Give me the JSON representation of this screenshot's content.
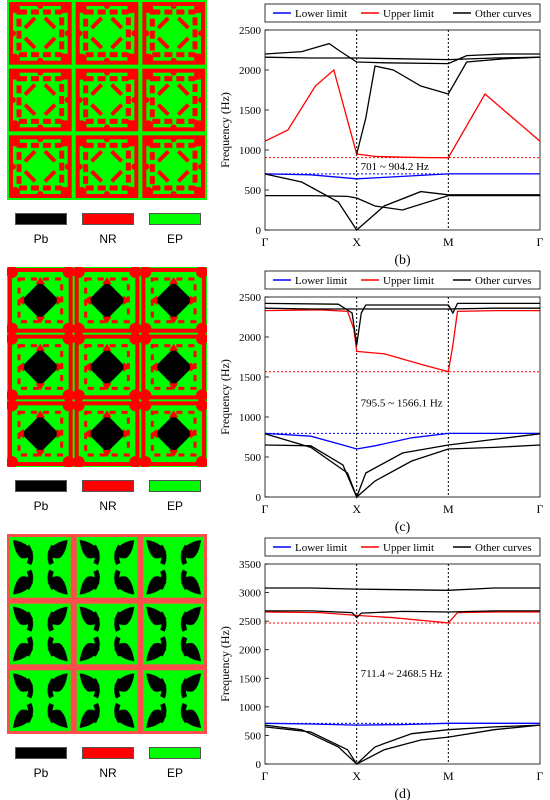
{
  "materials": [
    {
      "name": "Pb",
      "color": "#000000"
    },
    {
      "name": "NR",
      "color": "#ff0000"
    },
    {
      "name": "EP",
      "color": "#00ff00"
    }
  ],
  "chart_data": [
    {
      "type": "line",
      "panel_label": "(b)",
      "ylabel": "Frequency (Hz)",
      "xticks": [
        "Γ",
        "X",
        "M",
        "Γ"
      ],
      "yticks": [
        0,
        500,
        1000,
        1500,
        2000,
        2500
      ],
      "ylim": [
        0,
        2500
      ],
      "legend": [
        "Lower limit",
        "Upper limit",
        "Other curves"
      ],
      "band_gap_text": "701    ~ 904.2   Hz",
      "lower_limit": 701,
      "upper_limit": 904.2,
      "series": [
        {
          "name": "Lower limit",
          "color": "#0000ff",
          "x": [
            0,
            0.5,
            1.0,
            1.5,
            2.0,
            2.5,
            3.0
          ],
          "y": [
            701,
            690,
            640,
            670,
            701,
            701,
            701
          ]
        },
        {
          "name": "Upper limit",
          "color": "#ff0000",
          "x": [
            0,
            0.25,
            0.55,
            0.75,
            1.0,
            1.2,
            1.5,
            1.8,
            2.0,
            2.4,
            3.0
          ],
          "y": [
            1110,
            1250,
            1800,
            2000,
            950,
            920,
            910,
            905,
            904.2,
            1700,
            1110
          ]
        },
        {
          "name": "Other curves",
          "color": "#000000",
          "x": [
            0,
            0.4,
            0.7,
            0.8,
            1.0,
            1.3,
            2.0,
            2.2,
            2.6,
            3.0
          ],
          "y": [
            2200,
            2230,
            2330,
            2250,
            2100,
            2090,
            2080,
            2180,
            2200,
            2200
          ]
        },
        {
          "name": "Other curves",
          "color": "#000000",
          "x": [
            0,
            0.5,
            1.0,
            1.5,
            2.0,
            2.5,
            3.0
          ],
          "y": [
            2160,
            2150,
            2150,
            2140,
            2130,
            2150,
            2160
          ]
        },
        {
          "name": "Other curves",
          "color": "#000000",
          "x": [
            1.0,
            1.1,
            1.2,
            1.4,
            1.7,
            2.0,
            2.2,
            2.6,
            3.0
          ],
          "y": [
            950,
            1400,
            2050,
            2000,
            1800,
            1700,
            2100,
            2140,
            2160
          ]
        },
        {
          "name": "Other curves",
          "color": "#000000",
          "x": [
            0,
            0.5,
            0.9,
            1.0,
            1.2,
            1.5,
            2.0,
            2.5,
            3.0
          ],
          "y": [
            430,
            430,
            420,
            400,
            300,
            250,
            430,
            430,
            430
          ]
        },
        {
          "name": "Other curves",
          "color": "#000000",
          "x": [
            0,
            0.4,
            0.8,
            1.0,
            1.3,
            1.7,
            2.0,
            2.5,
            3.0
          ],
          "y": [
            700,
            600,
            350,
            0,
            300,
            480,
            440,
            440,
            440
          ]
        }
      ]
    },
    {
      "type": "line",
      "panel_label": "(c)",
      "ylabel": "Frequency (Hz)",
      "xticks": [
        "Γ",
        "X",
        "M",
        "Γ"
      ],
      "yticks": [
        0,
        500,
        1000,
        1500,
        2000,
        2500
      ],
      "ylim": [
        0,
        2500
      ],
      "legend": [
        "Lower limit",
        "Upper limit",
        "Other curves"
      ],
      "band_gap_text": "795.5 ~ 1566.1 Hz",
      "lower_limit": 795.5,
      "upper_limit": 1566.1,
      "series": [
        {
          "name": "Lower limit",
          "color": "#0000ff",
          "x": [
            0,
            0.5,
            0.85,
            1.0,
            1.2,
            1.6,
            2.0,
            2.5,
            3.0
          ],
          "y": [
            795.5,
            760,
            650,
            600,
            640,
            740,
            795.5,
            795.5,
            795.5
          ]
        },
        {
          "name": "Upper limit",
          "color": "#ff0000",
          "x": [
            0,
            0.6,
            0.9,
            0.97,
            1.0,
            1.3,
            1.7,
            2.0,
            2.05,
            2.1,
            2.5,
            3.0
          ],
          "y": [
            2330,
            2340,
            2320,
            2100,
            1820,
            1790,
            1660,
            1566.1,
            1900,
            2320,
            2330,
            2330
          ]
        },
        {
          "name": "Other curves",
          "color": "#000000",
          "x": [
            0,
            0.8,
            0.95,
            1.0,
            1.05,
            1.1,
            1.5,
            2.0,
            2.05,
            2.1,
            2.5,
            3.0
          ],
          "y": [
            2420,
            2410,
            2300,
            1900,
            2300,
            2400,
            2400,
            2400,
            2300,
            2420,
            2420,
            2420
          ]
        },
        {
          "name": "Other curves",
          "color": "#000000",
          "x": [
            0,
            0.5,
            1.0,
            1.5,
            2.0,
            2.5,
            3.0
          ],
          "y": [
            2360,
            2350,
            2350,
            2350,
            2350,
            2360,
            2360
          ]
        },
        {
          "name": "Other curves",
          "color": "#000000",
          "x": [
            0,
            0.5,
            0.85,
            1.0,
            1.2,
            1.6,
            2.0,
            2.5,
            3.0
          ],
          "y": [
            650,
            640,
            400,
            0,
            200,
            450,
            600,
            620,
            650
          ]
        },
        {
          "name": "Other curves",
          "color": "#000000",
          "x": [
            0,
            0.5,
            0.9,
            1.0,
            1.1,
            1.5,
            2.0,
            2.5,
            3.0
          ],
          "y": [
            790,
            620,
            300,
            0,
            300,
            550,
            650,
            720,
            790
          ]
        }
      ]
    },
    {
      "type": "line",
      "panel_label": "(d)",
      "ylabel": "Frequency (Hz)",
      "xticks": [
        "Γ",
        "X",
        "M",
        "Γ"
      ],
      "yticks": [
        0,
        500,
        1000,
        1500,
        2000,
        2500,
        3000,
        3500
      ],
      "ylim": [
        0,
        3500
      ],
      "legend": [
        "Lower limit",
        "Upper limit",
        "Other curves"
      ],
      "band_gap_text": "711.4 ~ 2468.5 Hz",
      "lower_limit": 711.4,
      "upper_limit": 2468.5,
      "series": [
        {
          "name": "Lower limit",
          "color": "#0000ff",
          "x": [
            0,
            0.5,
            1.0,
            1.5,
            2.0,
            2.5,
            3.0
          ],
          "y": [
            711.4,
            700,
            680,
            690,
            711.4,
            711.4,
            711.4
          ]
        },
        {
          "name": "Upper limit",
          "color": "#ff0000",
          "x": [
            0,
            0.6,
            1.0,
            1.4,
            1.8,
            2.0,
            2.1,
            2.5,
            3.0
          ],
          "y": [
            2660,
            2650,
            2600,
            2560,
            2500,
            2468.5,
            2650,
            2660,
            2660
          ]
        },
        {
          "name": "Other curves",
          "color": "#000000",
          "x": [
            0,
            0.5,
            1.0,
            1.5,
            2.0,
            2.5,
            3.0
          ],
          "y": [
            3080,
            3080,
            3060,
            3050,
            3040,
            3080,
            3080
          ]
        },
        {
          "name": "Other curves",
          "color": "#000000",
          "x": [
            0,
            0.5,
            0.95,
            1.0,
            1.05,
            1.5,
            2.0,
            2.5,
            3.0
          ],
          "y": [
            2680,
            2680,
            2650,
            2560,
            2640,
            2670,
            2660,
            2680,
            2680
          ]
        },
        {
          "name": "Other curves",
          "color": "#000000",
          "x": [
            0,
            0.4,
            0.8,
            1.0,
            1.3,
            1.7,
            2.0,
            2.5,
            3.0
          ],
          "y": [
            680,
            600,
            300,
            0,
            250,
            420,
            470,
            600,
            680
          ]
        },
        {
          "name": "Other curves",
          "color": "#000000",
          "x": [
            0,
            0.5,
            0.9,
            1.0,
            1.2,
            1.6,
            2.0,
            2.5,
            3.0
          ],
          "y": [
            650,
            560,
            250,
            0,
            300,
            530,
            600,
            650,
            680
          ]
        }
      ]
    }
  ]
}
